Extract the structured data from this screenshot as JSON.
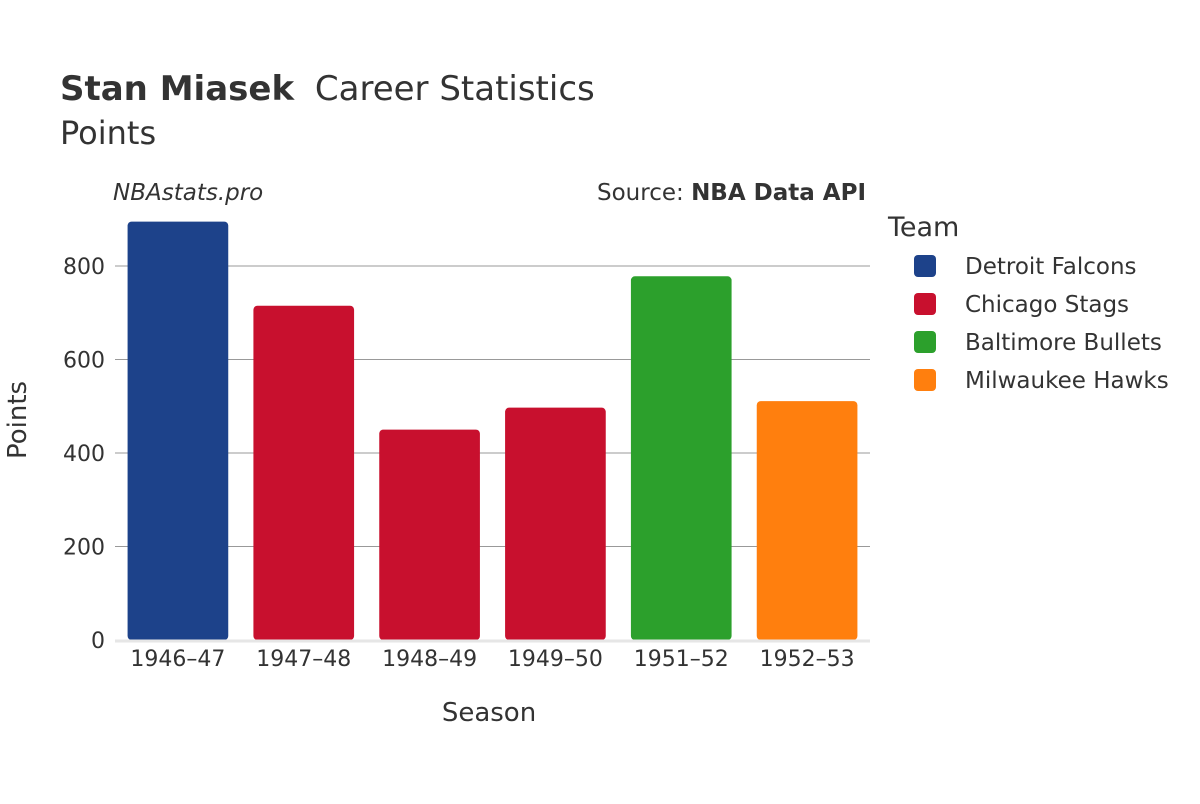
{
  "title": {
    "player": "Stan Miasek",
    "suffix": "Career Statistics",
    "subtitle": "Points"
  },
  "watermark": "NBAstats.pro",
  "source": {
    "prefix": "Source: ",
    "name": "NBA Data API"
  },
  "colors": {
    "Detroit Falcons": "#1d428a",
    "Chicago Stags": "#c8102e",
    "Baltimore Bullets": "#2ca02c",
    "Milwaukee Hawks": "#ff7f0e",
    "grid": "#999999",
    "baseline": "#e6e6e6",
    "text": "#333333"
  },
  "legend": {
    "title": "Team",
    "items": [
      "Detroit Falcons",
      "Chicago Stags",
      "Baltimore Bullets",
      "Milwaukee Hawks"
    ],
    "placement": "right"
  },
  "chart_data": {
    "type": "bar",
    "title": "Stan Miasek Career Statistics",
    "subtitle": "Points",
    "xlabel": "Season",
    "ylabel": "Points",
    "ylim": [
      0,
      900
    ],
    "yticks": [
      0,
      200,
      400,
      600,
      800
    ],
    "grid": true,
    "categories": [
      "1946–47",
      "1947–48",
      "1948–49",
      "1949–50",
      "1951–52",
      "1952–53"
    ],
    "values": [
      895,
      715,
      450,
      497,
      778,
      511
    ],
    "teams": [
      "Detroit Falcons",
      "Chicago Stags",
      "Chicago Stags",
      "Chicago Stags",
      "Baltimore Bullets",
      "Milwaukee Hawks"
    ]
  }
}
